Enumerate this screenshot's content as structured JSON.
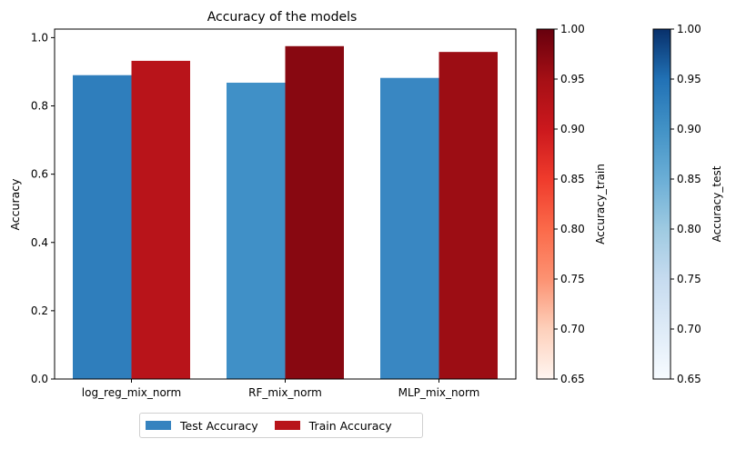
{
  "chart_data": {
    "type": "bar",
    "title": "Accuracy of the models",
    "ylabel": "Accuracy",
    "xlabel": "",
    "categories": [
      "log_reg_mix_norm",
      "RF_mix_norm",
      "MLP_mix_norm"
    ],
    "ylim": [
      0,
      1.025
    ],
    "yticks": [
      "0.0",
      "0.2",
      "0.4",
      "0.6",
      "0.8",
      "1.0"
    ],
    "series": [
      {
        "name": "Test Accuracy",
        "values": [
          0.89,
          0.868,
          0.882
        ],
        "colors": [
          "#2f7ebc",
          "#4090c7",
          "#3987c2"
        ],
        "legend_color": "#3683bf"
      },
      {
        "name": "Train Accuracy",
        "values": [
          0.932,
          0.975,
          0.958
        ],
        "colors": [
          "#b8141a",
          "#880811",
          "#9c0d14"
        ],
        "legend_color": "#b8141a"
      }
    ],
    "legend_position": "bottom-center",
    "grid": false,
    "colorbars": [
      {
        "label": "Accuracy_train",
        "range": [
          0.65,
          1.0
        ],
        "ticks": [
          "0.65",
          "0.70",
          "0.75",
          "0.80",
          "0.85",
          "0.90",
          "0.95",
          "1.00"
        ],
        "colormap": "Reds",
        "stops": [
          "#fff5f0",
          "#fdd0bb",
          "#fc9272",
          "#fb6a4a",
          "#ef3b2c",
          "#cb181d",
          "#a50f15",
          "#67000d"
        ]
      },
      {
        "label": "Accuracy_test",
        "range": [
          0.65,
          1.0
        ],
        "ticks": [
          "0.65",
          "0.70",
          "0.75",
          "0.80",
          "0.85",
          "0.90",
          "0.95",
          "1.00"
        ],
        "colormap": "Blues",
        "stops": [
          "#f7fbff",
          "#deebf7",
          "#c6dbef",
          "#9ecae1",
          "#6baed6",
          "#4292c6",
          "#2171b5",
          "#08306b"
        ]
      }
    ]
  }
}
